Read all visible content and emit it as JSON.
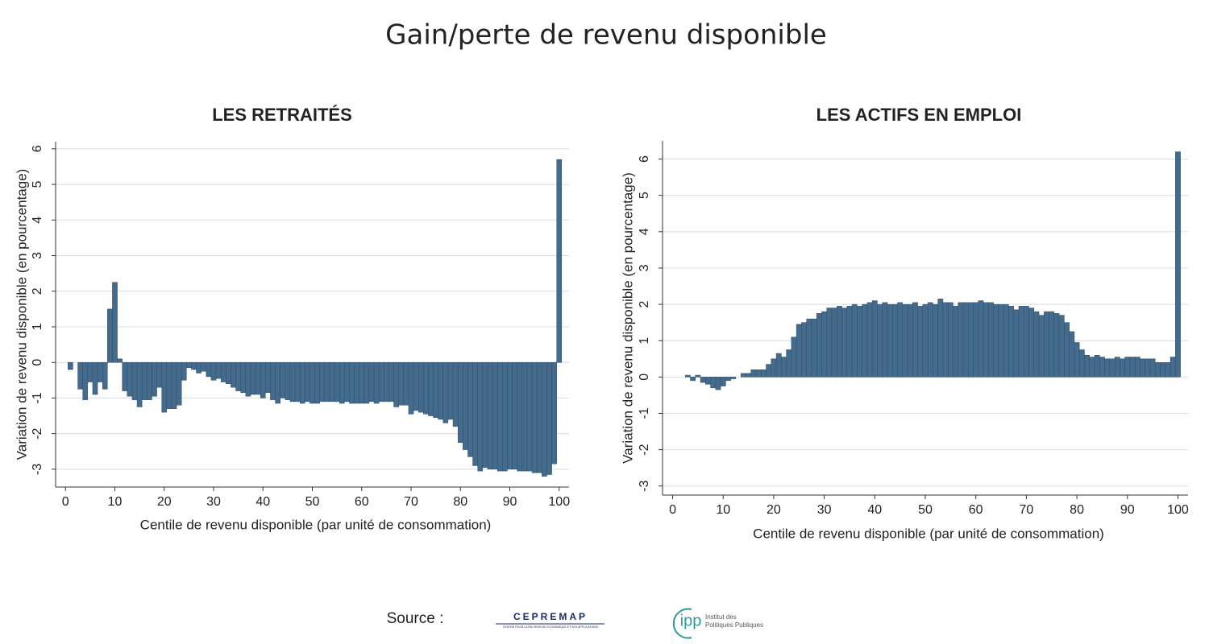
{
  "title": "Gain/perte de revenu disponible",
  "chart_data": [
    {
      "type": "bar",
      "title": "LES RETRAITÉS",
      "xlabel": "Centile de revenu disponible (par unité de consommation)",
      "ylabel": "Variation de revenu disponible (en pourcentage)",
      "x": [
        1,
        2,
        3,
        4,
        5,
        6,
        7,
        8,
        9,
        10,
        11,
        12,
        13,
        14,
        15,
        16,
        17,
        18,
        19,
        20,
        21,
        22,
        23,
        24,
        25,
        26,
        27,
        28,
        29,
        30,
        31,
        32,
        33,
        34,
        35,
        36,
        37,
        38,
        39,
        40,
        41,
        42,
        43,
        44,
        45,
        46,
        47,
        48,
        49,
        50,
        51,
        52,
        53,
        54,
        55,
        56,
        57,
        58,
        59,
        60,
        61,
        62,
        63,
        64,
        65,
        66,
        67,
        68,
        69,
        70,
        71,
        72,
        73,
        74,
        75,
        76,
        77,
        78,
        79,
        80,
        81,
        82,
        83,
        84,
        85,
        86,
        87,
        88,
        89,
        90,
        91,
        92,
        93,
        94,
        95,
        96,
        97,
        98,
        99,
        100
      ],
      "values": [
        -0.2,
        0,
        -0.75,
        -1.05,
        -0.55,
        -0.9,
        -0.55,
        -0.75,
        1.5,
        2.25,
        0.1,
        -0.8,
        -0.95,
        -1.05,
        -1.25,
        -1.05,
        -1.05,
        -0.95,
        -0.7,
        -1.4,
        -1.3,
        -1.3,
        -1.2,
        -0.5,
        -0.15,
        -0.2,
        -0.3,
        -0.25,
        -0.4,
        -0.5,
        -0.45,
        -0.55,
        -0.6,
        -0.7,
        -0.8,
        -0.85,
        -0.95,
        -0.9,
        -0.9,
        -1.0,
        -0.85,
        -1.05,
        -1.15,
        -1.0,
        -1.05,
        -1.1,
        -1.1,
        -1.15,
        -1.1,
        -1.15,
        -1.15,
        -1.1,
        -1.1,
        -1.1,
        -1.1,
        -1.15,
        -1.1,
        -1.15,
        -1.15,
        -1.15,
        -1.15,
        -1.1,
        -1.15,
        -1.1,
        -1.1,
        -1.1,
        -1.25,
        -1.2,
        -1.2,
        -1.45,
        -1.35,
        -1.4,
        -1.45,
        -1.5,
        -1.55,
        -1.6,
        -1.7,
        -1.6,
        -1.8,
        -2.25,
        -2.45,
        -2.65,
        -2.9,
        -3.05,
        -2.95,
        -3.0,
        -3.0,
        -3.05,
        -3.05,
        -3.0,
        -3.0,
        -3.05,
        -3.05,
        -3.05,
        -3.1,
        -3.1,
        -3.2,
        -3.15,
        -2.85,
        5.7
      ],
      "color": "#456b8c",
      "xlim": [
        -2,
        102
      ],
      "ylim": [
        -3.5,
        6.2
      ],
      "xticks": [
        0,
        10,
        20,
        30,
        40,
        50,
        60,
        70,
        80,
        90,
        100
      ],
      "yticks": [
        -3,
        -2,
        -1,
        0,
        1,
        2,
        3,
        4,
        5,
        6
      ],
      "grid": true
    },
    {
      "type": "bar",
      "title": "LES ACTIFS EN EMPLOI",
      "xlabel": "Centile de revenu disponible (par unité de consommation)",
      "ylabel": "Variation de revenu disponible (en pourcentage)",
      "x": [
        1,
        2,
        3,
        4,
        5,
        6,
        7,
        8,
        9,
        10,
        11,
        12,
        13,
        14,
        15,
        16,
        17,
        18,
        19,
        20,
        21,
        22,
        23,
        24,
        25,
        26,
        27,
        28,
        29,
        30,
        31,
        32,
        33,
        34,
        35,
        36,
        37,
        38,
        39,
        40,
        41,
        42,
        43,
        44,
        45,
        46,
        47,
        48,
        49,
        50,
        51,
        52,
        53,
        54,
        55,
        56,
        57,
        58,
        59,
        60,
        61,
        62,
        63,
        64,
        65,
        66,
        67,
        68,
        69,
        70,
        71,
        72,
        73,
        74,
        75,
        76,
        77,
        78,
        79,
        80,
        81,
        82,
        83,
        84,
        85,
        86,
        87,
        88,
        89,
        90,
        91,
        92,
        93,
        94,
        95,
        96,
        97,
        98,
        99,
        100
      ],
      "values": [
        0,
        0,
        0.05,
        -0.1,
        0.05,
        -0.15,
        -0.2,
        -0.3,
        -0.35,
        -0.25,
        -0.1,
        -0.05,
        0,
        0.1,
        0.1,
        0.2,
        0.2,
        0.2,
        0.35,
        0.5,
        0.65,
        0.55,
        0.75,
        1.1,
        1.45,
        1.5,
        1.6,
        1.6,
        1.75,
        1.8,
        1.9,
        1.9,
        1.95,
        1.9,
        1.95,
        2.0,
        1.95,
        2.0,
        2.05,
        2.1,
        2.0,
        2.05,
        2.0,
        2.0,
        2.05,
        2.0,
        2.0,
        2.05,
        1.95,
        2.0,
        2.05,
        2.0,
        2.15,
        2.05,
        2.05,
        1.95,
        2.05,
        2.05,
        2.05,
        2.05,
        2.1,
        2.05,
        2.05,
        2.0,
        2.0,
        2.0,
        1.95,
        1.85,
        1.95,
        1.95,
        1.9,
        1.8,
        1.7,
        1.8,
        1.8,
        1.75,
        1.7,
        1.5,
        1.25,
        0.95,
        0.75,
        0.6,
        0.55,
        0.6,
        0.55,
        0.5,
        0.5,
        0.55,
        0.5,
        0.55,
        0.55,
        0.55,
        0.5,
        0.5,
        0.5,
        0.4,
        0.4,
        0.4,
        0.55,
        6.2
      ],
      "color": "#456b8c",
      "xlim": [
        -2,
        102
      ],
      "ylim": [
        -3.25,
        6.5
      ],
      "xticks": [
        0,
        10,
        20,
        30,
        40,
        50,
        60,
        70,
        80,
        90,
        100
      ],
      "yticks": [
        -3,
        -2,
        -1,
        0,
        1,
        2,
        3,
        4,
        5,
        6
      ],
      "grid": true
    }
  ],
  "footer": {
    "source": "Source :",
    "cepremap": "CEPREMAP",
    "cepremap_sub": "CENTRE POUR LA RECHERCHE ÉCONOMIQUE ET SES APPLICATIONS",
    "ipp": "ipp",
    "ipp_line1": "Institut des",
    "ipp_line2": "Politiques Publiques"
  }
}
